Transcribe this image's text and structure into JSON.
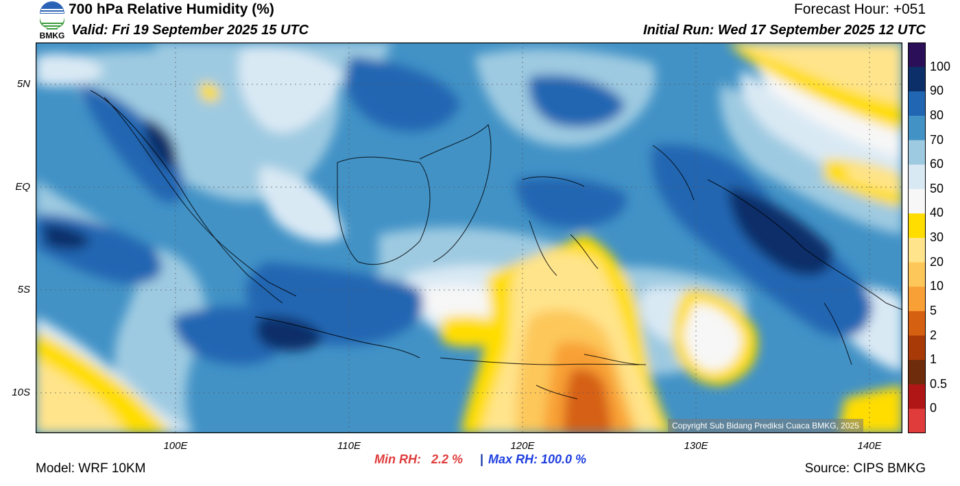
{
  "header": {
    "title": "700 hPa Relative Humidity (%)",
    "valid": "Valid: Fri 19 September 2025 15 UTC",
    "forecast_hour": "Forecast Hour: +051",
    "initial_run": "Initial Run: Wed 17 September 2025 12 UTC"
  },
  "logo": {
    "text": "BMKG",
    "icon": "bmkg-logo-icon"
  },
  "axes": {
    "lat_labels": [
      "5N",
      "EQ",
      "5S",
      "10S"
    ],
    "lon_labels": [
      "100E",
      "110E",
      "120E",
      "130E",
      "140E"
    ]
  },
  "colorbar": {
    "labels": [
      "100",
      "90",
      "80",
      "70",
      "60",
      "50",
      "40",
      "30",
      "20",
      "10",
      "5",
      "2",
      "1",
      "0.5",
      "0"
    ],
    "colors": [
      "#2b0f58",
      "#0d2f69",
      "#2166b2",
      "#4292c6",
      "#9ecae1",
      "#d9e9f4",
      "#f7f7f7",
      "#ffdd00",
      "#ffe48c",
      "#fdc75a",
      "#f8a035",
      "#d66012",
      "#a83a08",
      "#6e2c0c",
      "#b01616",
      "#e03c3c"
    ]
  },
  "stats": {
    "min": "Min RH:   2.2 %",
    "separator": "|",
    "max": "Max RH: 100.0 %"
  },
  "footer": {
    "model": "Model: WRF 10KM",
    "source": "Source: CIPS BMKG"
  },
  "copyright": "Copyright Sub Bidang Prediksi Cuaca BMKG, 2025"
}
